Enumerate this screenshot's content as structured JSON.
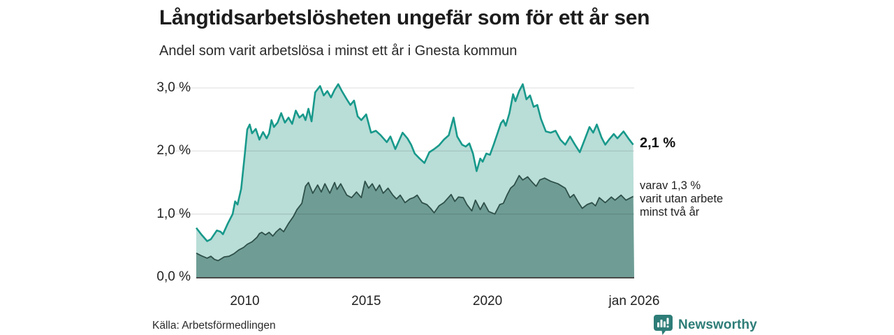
{
  "header": {
    "title": "Långtidsarbetslösheten ungefär som för ett år sen",
    "subtitle": "Andel som varit arbetslösa i minst ett år i Gnesta kommun"
  },
  "annotations": {
    "end_value": "2,1 %",
    "end_note": "varav 1,3 %\nvarit utan arbete\nminst två år"
  },
  "footer": {
    "source": "Källa: Arbetsförmedlingen",
    "brand": "Newsworthy"
  },
  "colors": {
    "series1_line": "#18998b",
    "series1_fill": "#b9ddd7",
    "series2_line": "#2e5049",
    "series2_fill": "#6f9d96",
    "gridline": "#e2e2e2",
    "baseline": "#4a4a4a",
    "brand_teal": "#2e7d78"
  },
  "chart_data": {
    "type": "area",
    "title": "Långtidsarbetslösheten ungefär som för ett år sen",
    "subtitle": "Andel som varit arbetslösa i minst ett år i Gnesta kommun",
    "source": "Källa: Arbetsförmedlingen",
    "unit": "%",
    "grid": true,
    "legend_position": "right-annotations",
    "x_axis": {
      "min": 2008,
      "max": 2026.04,
      "ticks": [
        {
          "label": "2010",
          "x": 2010
        },
        {
          "label": "2015",
          "x": 2015
        },
        {
          "label": "2020",
          "x": 2020
        },
        {
          "label": "jan 2026",
          "x": 2026.04
        }
      ]
    },
    "y_axis": {
      "min": 0,
      "max": 3.3,
      "ticks": [
        {
          "label": "0,0 %",
          "value": 0.0
        },
        {
          "label": "1,0 %",
          "value": 1.0
        },
        {
          "label": "2,0 %",
          "value": 2.0
        },
        {
          "label": "3,0 %",
          "value": 3.0
        }
      ]
    },
    "series": [
      {
        "name": "Arbetslösa minst ett år",
        "end_label": "2,1 %",
        "end_value": 2.1,
        "points": [
          [
            2008.0,
            0.78
          ],
          [
            2008.2,
            0.68
          ],
          [
            2008.45,
            0.57
          ],
          [
            2008.6,
            0.6
          ],
          [
            2008.85,
            0.74
          ],
          [
            2009.0,
            0.72
          ],
          [
            2009.1,
            0.68
          ],
          [
            2009.3,
            0.85
          ],
          [
            2009.5,
            1.0
          ],
          [
            2009.6,
            1.2
          ],
          [
            2009.7,
            1.15
          ],
          [
            2009.85,
            1.4
          ],
          [
            2010.0,
            1.95
          ],
          [
            2010.1,
            2.34
          ],
          [
            2010.2,
            2.42
          ],
          [
            2010.3,
            2.28
          ],
          [
            2010.45,
            2.35
          ],
          [
            2010.6,
            2.18
          ],
          [
            2010.75,
            2.3
          ],
          [
            2010.9,
            2.2
          ],
          [
            2011.0,
            2.28
          ],
          [
            2011.1,
            2.49
          ],
          [
            2011.2,
            2.38
          ],
          [
            2011.35,
            2.45
          ],
          [
            2011.5,
            2.6
          ],
          [
            2011.65,
            2.45
          ],
          [
            2011.8,
            2.53
          ],
          [
            2011.95,
            2.43
          ],
          [
            2012.1,
            2.64
          ],
          [
            2012.25,
            2.53
          ],
          [
            2012.4,
            2.58
          ],
          [
            2012.5,
            2.49
          ],
          [
            2012.62,
            2.67
          ],
          [
            2012.75,
            2.47
          ],
          [
            2012.9,
            2.93
          ],
          [
            2013.1,
            3.03
          ],
          [
            2013.25,
            2.88
          ],
          [
            2013.4,
            2.95
          ],
          [
            2013.55,
            2.85
          ],
          [
            2013.7,
            2.97
          ],
          [
            2013.85,
            3.06
          ],
          [
            2014.0,
            2.95
          ],
          [
            2014.2,
            2.82
          ],
          [
            2014.35,
            2.73
          ],
          [
            2014.5,
            2.8
          ],
          [
            2014.65,
            2.55
          ],
          [
            2014.8,
            2.49
          ],
          [
            2015.0,
            2.58
          ],
          [
            2015.2,
            2.29
          ],
          [
            2015.4,
            2.32
          ],
          [
            2015.6,
            2.25
          ],
          [
            2015.85,
            2.14
          ],
          [
            2016.0,
            2.23
          ],
          [
            2016.2,
            2.03
          ],
          [
            2016.5,
            2.29
          ],
          [
            2016.7,
            2.2
          ],
          [
            2016.85,
            2.1
          ],
          [
            2017.0,
            1.96
          ],
          [
            2017.2,
            1.88
          ],
          [
            2017.4,
            1.81
          ],
          [
            2017.6,
            1.98
          ],
          [
            2017.8,
            2.03
          ],
          [
            2018.0,
            2.09
          ],
          [
            2018.2,
            2.18
          ],
          [
            2018.4,
            2.25
          ],
          [
            2018.6,
            2.53
          ],
          [
            2018.75,
            2.23
          ],
          [
            2018.95,
            2.1
          ],
          [
            2019.1,
            2.07
          ],
          [
            2019.25,
            2.12
          ],
          [
            2019.4,
            1.96
          ],
          [
            2019.55,
            1.68
          ],
          [
            2019.7,
            1.88
          ],
          [
            2019.8,
            1.83
          ],
          [
            2019.95,
            1.96
          ],
          [
            2020.1,
            1.94
          ],
          [
            2020.25,
            2.1
          ],
          [
            2020.4,
            2.27
          ],
          [
            2020.55,
            2.44
          ],
          [
            2020.65,
            2.49
          ],
          [
            2020.75,
            2.4
          ],
          [
            2020.9,
            2.6
          ],
          [
            2021.05,
            2.9
          ],
          [
            2021.15,
            2.79
          ],
          [
            2021.3,
            2.95
          ],
          [
            2021.45,
            3.06
          ],
          [
            2021.6,
            2.82
          ],
          [
            2021.75,
            2.88
          ],
          [
            2021.9,
            2.7
          ],
          [
            2022.05,
            2.73
          ],
          [
            2022.2,
            2.51
          ],
          [
            2022.4,
            2.31
          ],
          [
            2022.6,
            2.29
          ],
          [
            2022.8,
            2.32
          ],
          [
            2023.0,
            2.18
          ],
          [
            2023.2,
            2.1
          ],
          [
            2023.4,
            2.23
          ],
          [
            2023.6,
            2.1
          ],
          [
            2023.8,
            1.98
          ],
          [
            2024.0,
            2.18
          ],
          [
            2024.2,
            2.38
          ],
          [
            2024.35,
            2.29
          ],
          [
            2024.5,
            2.42
          ],
          [
            2024.7,
            2.21
          ],
          [
            2024.85,
            2.1
          ],
          [
            2025.0,
            2.18
          ],
          [
            2025.2,
            2.27
          ],
          [
            2025.35,
            2.2
          ],
          [
            2025.6,
            2.31
          ],
          [
            2025.8,
            2.2
          ],
          [
            2026.0,
            2.1
          ]
        ]
      },
      {
        "name": "varav utan arbete minst två år",
        "end_label": "varav 1,3 %",
        "end_value": 1.3,
        "points": [
          [
            2008.0,
            0.38
          ],
          [
            2008.2,
            0.34
          ],
          [
            2008.45,
            0.3
          ],
          [
            2008.6,
            0.33
          ],
          [
            2008.75,
            0.28
          ],
          [
            2008.9,
            0.26
          ],
          [
            2009.15,
            0.32
          ],
          [
            2009.35,
            0.33
          ],
          [
            2009.55,
            0.37
          ],
          [
            2009.75,
            0.43
          ],
          [
            2009.95,
            0.47
          ],
          [
            2010.1,
            0.52
          ],
          [
            2010.3,
            0.56
          ],
          [
            2010.5,
            0.63
          ],
          [
            2010.6,
            0.69
          ],
          [
            2010.7,
            0.71
          ],
          [
            2010.85,
            0.67
          ],
          [
            2011.0,
            0.71
          ],
          [
            2011.15,
            0.65
          ],
          [
            2011.3,
            0.72
          ],
          [
            2011.45,
            0.77
          ],
          [
            2011.6,
            0.72
          ],
          [
            2011.8,
            0.85
          ],
          [
            2012.0,
            0.96
          ],
          [
            2012.15,
            1.07
          ],
          [
            2012.35,
            1.17
          ],
          [
            2012.5,
            1.44
          ],
          [
            2012.62,
            1.5
          ],
          [
            2012.8,
            1.33
          ],
          [
            2013.0,
            1.46
          ],
          [
            2013.15,
            1.35
          ],
          [
            2013.3,
            1.48
          ],
          [
            2013.5,
            1.33
          ],
          [
            2013.7,
            1.5
          ],
          [
            2013.8,
            1.39
          ],
          [
            2013.95,
            1.48
          ],
          [
            2014.2,
            1.3
          ],
          [
            2014.4,
            1.26
          ],
          [
            2014.6,
            1.35
          ],
          [
            2014.8,
            1.26
          ],
          [
            2014.95,
            1.52
          ],
          [
            2015.1,
            1.41
          ],
          [
            2015.25,
            1.48
          ],
          [
            2015.4,
            1.37
          ],
          [
            2015.55,
            1.46
          ],
          [
            2015.7,
            1.33
          ],
          [
            2015.9,
            1.41
          ],
          [
            2016.1,
            1.3
          ],
          [
            2016.25,
            1.24
          ],
          [
            2016.4,
            1.3
          ],
          [
            2016.6,
            1.18
          ],
          [
            2016.8,
            1.24
          ],
          [
            2016.95,
            1.26
          ],
          [
            2017.1,
            1.3
          ],
          [
            2017.3,
            1.18
          ],
          [
            2017.5,
            1.15
          ],
          [
            2017.65,
            1.09
          ],
          [
            2017.8,
            1.02
          ],
          [
            2018.0,
            1.13
          ],
          [
            2018.2,
            1.18
          ],
          [
            2018.5,
            1.31
          ],
          [
            2018.65,
            1.2
          ],
          [
            2018.8,
            1.27
          ],
          [
            2019.0,
            1.26
          ],
          [
            2019.15,
            1.15
          ],
          [
            2019.35,
            1.05
          ],
          [
            2019.5,
            1.22
          ],
          [
            2019.7,
            1.07
          ],
          [
            2019.85,
            1.18
          ],
          [
            2020.05,
            1.04
          ],
          [
            2020.3,
            1.0
          ],
          [
            2020.5,
            1.15
          ],
          [
            2020.65,
            1.17
          ],
          [
            2020.8,
            1.3
          ],
          [
            2020.95,
            1.41
          ],
          [
            2021.1,
            1.46
          ],
          [
            2021.3,
            1.61
          ],
          [
            2021.45,
            1.54
          ],
          [
            2021.65,
            1.59
          ],
          [
            2021.85,
            1.5
          ],
          [
            2022.0,
            1.44
          ],
          [
            2022.15,
            1.54
          ],
          [
            2022.35,
            1.57
          ],
          [
            2022.6,
            1.52
          ],
          [
            2022.9,
            1.48
          ],
          [
            2023.2,
            1.41
          ],
          [
            2023.4,
            1.26
          ],
          [
            2023.55,
            1.31
          ],
          [
            2023.75,
            1.18
          ],
          [
            2023.9,
            1.09
          ],
          [
            2024.1,
            1.15
          ],
          [
            2024.3,
            1.18
          ],
          [
            2024.45,
            1.13
          ],
          [
            2024.6,
            1.26
          ],
          [
            2024.85,
            1.18
          ],
          [
            2025.1,
            1.27
          ],
          [
            2025.25,
            1.22
          ],
          [
            2025.5,
            1.3
          ],
          [
            2025.7,
            1.22
          ],
          [
            2026.0,
            1.28
          ]
        ]
      }
    ]
  }
}
